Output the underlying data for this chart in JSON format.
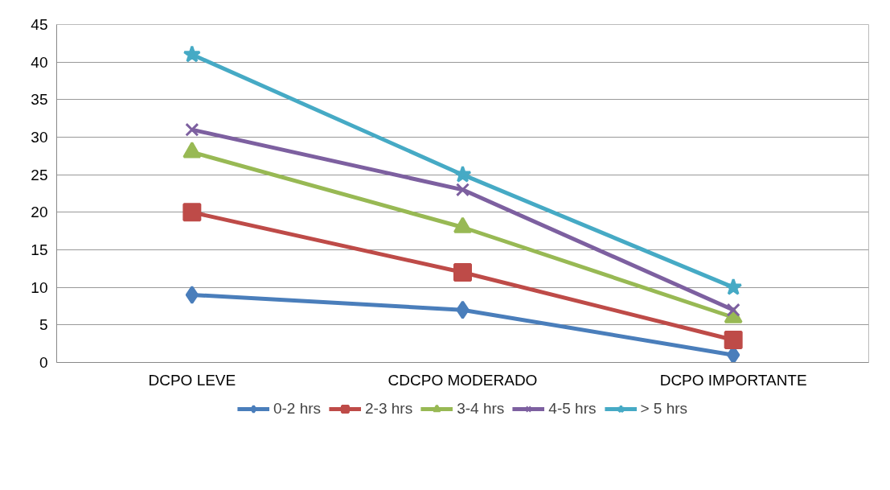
{
  "chart_data": {
    "type": "line",
    "categories": [
      "DCPO LEVE",
      "CDCPO MODERADO",
      "DCPO IMPORTANTE"
    ],
    "ylim": [
      0,
      45
    ],
    "yticks": [
      0,
      5,
      10,
      15,
      20,
      25,
      30,
      35,
      40,
      45
    ],
    "grid": "y",
    "legend": "bottom",
    "series": [
      {
        "name": "0-2 hrs",
        "color": "#4a7ebb",
        "marker": "diamond",
        "values": [
          9,
          7,
          1
        ]
      },
      {
        "name": "2-3 hrs",
        "color": "#be4b48",
        "marker": "square",
        "values": [
          20,
          12,
          3
        ]
      },
      {
        "name": "3-4 hrs",
        "color": "#98b954",
        "marker": "triangle",
        "values": [
          28,
          18,
          6
        ]
      },
      {
        "name": "4-5 hrs",
        "color": "#7d60a0",
        "marker": "cross",
        "values": [
          31,
          23,
          7
        ]
      },
      {
        "name": "> 5 hrs",
        "color": "#46aac5",
        "marker": "star",
        "values": [
          41,
          25,
          10
        ]
      }
    ]
  }
}
